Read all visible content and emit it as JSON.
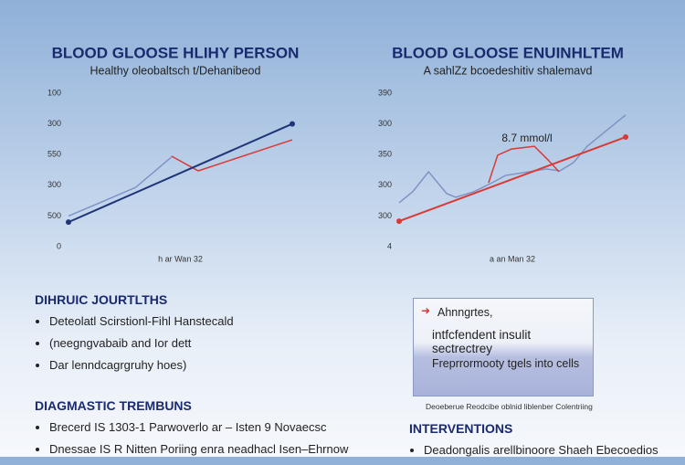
{
  "chart_data": [
    {
      "type": "line",
      "title": "BLOOD GLOOSE HLIHY PERSON",
      "subtitle": "Healthy oleobaltsch t/Dehanibeod",
      "x_label": "h ar Wan 32",
      "y_labels": [
        "100",
        "300",
        "550",
        "300",
        "500",
        "0"
      ],
      "xlim": [
        0,
        10
      ],
      "ylim": [
        0,
        5
      ],
      "series": [
        {
          "color": "#7f93c4",
          "x": [
            0,
            1.4,
            3,
            4.6
          ],
          "values": [
            1.0,
            1.43,
            1.93,
            2.92
          ]
        },
        {
          "color": "#d93a35",
          "x": [
            4.6,
            5.8,
            10
          ],
          "values": [
            2.95,
            2.47,
            3.48
          ]
        },
        {
          "color": "#1f3577",
          "x": [
            0,
            10
          ],
          "values": [
            0.8,
            4.0
          ],
          "endpoints": true
        }
      ]
    },
    {
      "type": "line",
      "title": "BLOOD GLOOSE ENUINHLTEM",
      "subtitle": "A sahlZz bcoedeshitiv shalemavd",
      "x_label": "a an Man 32",
      "y_labels": [
        "390",
        "300",
        "350",
        "300",
        "300",
        "4"
      ],
      "xlim": [
        0,
        10
      ],
      "ylim": [
        0,
        5
      ],
      "annotation": "8.7 mmol/l",
      "series": [
        {
          "color": "#7f93c4",
          "x": [
            0,
            0.6,
            1.3,
            2.1,
            2.5,
            3.3,
            4.1,
            4.7,
            6.5,
            7.1,
            7.7,
            8.3,
            9.3,
            10
          ],
          "values": [
            1.43,
            1.79,
            2.44,
            1.73,
            1.61,
            1.79,
            2.08,
            2.32,
            2.53,
            2.47,
            2.74,
            3.27,
            3.87,
            4.29
          ]
        },
        {
          "color": "#d93a35",
          "x": [
            3.95,
            4.35,
            4.96,
            5.97,
            6.57,
            7.06
          ],
          "values": [
            2.08,
            2.98,
            3.18,
            3.27,
            2.83,
            2.44
          ]
        },
        {
          "color": "#d93a35",
          "x": [
            0,
            10
          ],
          "values": [
            0.83,
            3.57
          ],
          "endpoints": true
        }
      ]
    }
  ],
  "sections": [
    {
      "title": "DIHRUIC JOURTLTHS",
      "bullets": [
        "Deteolatl Scirstionl-Fihl Hanstecald",
        "(neegngvabaib and Ior dett",
        "Dar lenndcagrgruhy hoes)"
      ]
    },
    {
      "title": "DIAGMASTIC TREMBUNS",
      "bullets": [
        "Brecerd IS 1303-1 Parwoverlo ar – Isten 9 Novaecsc",
        "Dnessae IS R Nitten Poriing enra neadhacl Isen–Ehrnow"
      ]
    },
    {
      "title": "INTERVENTIONS",
      "bullets": [
        "Deadongalis arellbinoore Shaeh Ebecoedios"
      ]
    }
  ],
  "callout": {
    "lines": [
      "Ahnngrtes,",
      "intfcfendent insulit sectrectrey",
      "Freprrormooty tgels into cells"
    ],
    "caption": "Deoeberue Reodcibe oblnid liblenber Colentriing"
  }
}
